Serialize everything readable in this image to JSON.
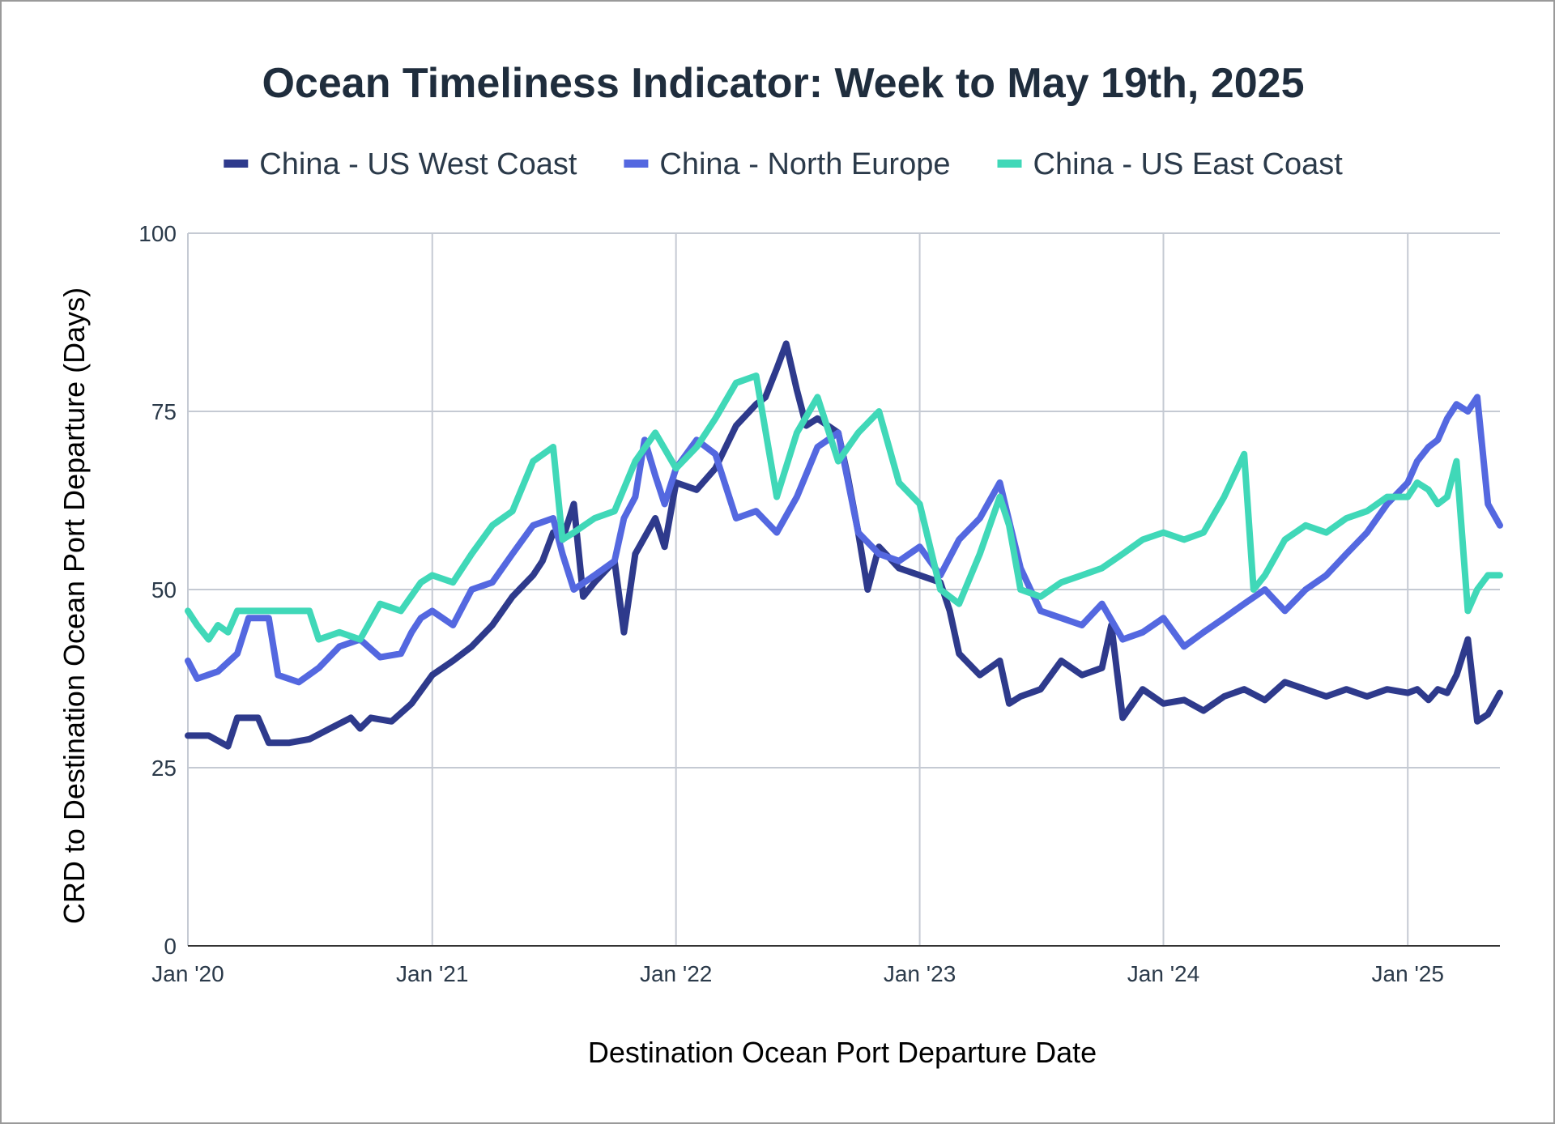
{
  "chart_data": {
    "type": "line",
    "title": "Ocean Timeliness Indicator: Week to May 19th, 2025",
    "xlabel": "Destination Ocean Port Departure Date",
    "ylabel": "CRD to Destination Ocean Port Departure (Days)",
    "ylim": [
      0,
      100
    ],
    "yticks": [
      0,
      25,
      50,
      75,
      100
    ],
    "xlim": [
      "2020-01-01",
      "2025-05-19"
    ],
    "xticks": [
      {
        "date": "2020-01-01",
        "label": "Jan '20"
      },
      {
        "date": "2021-01-01",
        "label": "Jan '21"
      },
      {
        "date": "2022-01-01",
        "label": "Jan '22"
      },
      {
        "date": "2023-01-01",
        "label": "Jan '23"
      },
      {
        "date": "2024-01-01",
        "label": "Jan '24"
      },
      {
        "date": "2025-01-01",
        "label": "Jan '25"
      }
    ],
    "grid": true,
    "legend_position": "top",
    "series": [
      {
        "name": "China - US West Coast",
        "color": "#2e3a8c",
        "points": [
          [
            "2020-01-01",
            29.5
          ],
          [
            "2020-02-01",
            29.5
          ],
          [
            "2020-03-01",
            28
          ],
          [
            "2020-03-15",
            32
          ],
          [
            "2020-04-15",
            32
          ],
          [
            "2020-05-01",
            28.5
          ],
          [
            "2020-06-01",
            28.5
          ],
          [
            "2020-07-01",
            29
          ],
          [
            "2020-08-01",
            30.5
          ],
          [
            "2020-09-01",
            32
          ],
          [
            "2020-09-15",
            30.5
          ],
          [
            "2020-10-01",
            32
          ],
          [
            "2020-11-01",
            31.5
          ],
          [
            "2020-12-01",
            34
          ],
          [
            "2021-01-01",
            38
          ],
          [
            "2021-02-01",
            40
          ],
          [
            "2021-03-01",
            42
          ],
          [
            "2021-04-01",
            45
          ],
          [
            "2021-05-01",
            49
          ],
          [
            "2021-06-01",
            52
          ],
          [
            "2021-06-15",
            54
          ],
          [
            "2021-07-01",
            58
          ],
          [
            "2021-07-15",
            57
          ],
          [
            "2021-08-01",
            62
          ],
          [
            "2021-08-15",
            49
          ],
          [
            "2021-09-01",
            51
          ],
          [
            "2021-10-01",
            54
          ],
          [
            "2021-10-15",
            44
          ],
          [
            "2021-11-01",
            55
          ],
          [
            "2021-12-01",
            60
          ],
          [
            "2021-12-15",
            56
          ],
          [
            "2022-01-01",
            65
          ],
          [
            "2022-02-01",
            64
          ],
          [
            "2022-03-01",
            67
          ],
          [
            "2022-04-01",
            73
          ],
          [
            "2022-05-01",
            76
          ],
          [
            "2022-05-15",
            77
          ],
          [
            "2022-06-01",
            81
          ],
          [
            "2022-06-15",
            84.5
          ],
          [
            "2022-07-01",
            78
          ],
          [
            "2022-07-15",
            73
          ],
          [
            "2022-08-01",
            74
          ],
          [
            "2022-09-01",
            72
          ],
          [
            "2022-09-15",
            66
          ],
          [
            "2022-10-01",
            58
          ],
          [
            "2022-10-15",
            50
          ],
          [
            "2022-11-01",
            56
          ],
          [
            "2022-12-01",
            53
          ],
          [
            "2023-01-01",
            52
          ],
          [
            "2023-02-01",
            51
          ],
          [
            "2023-02-15",
            47
          ],
          [
            "2023-03-01",
            41
          ],
          [
            "2023-04-01",
            38
          ],
          [
            "2023-05-01",
            40
          ],
          [
            "2023-05-15",
            34
          ],
          [
            "2023-06-01",
            35
          ],
          [
            "2023-07-01",
            36
          ],
          [
            "2023-08-01",
            40
          ],
          [
            "2023-09-01",
            38
          ],
          [
            "2023-10-01",
            39
          ],
          [
            "2023-10-15",
            45
          ],
          [
            "2023-11-01",
            32
          ],
          [
            "2023-12-01",
            36
          ],
          [
            "2024-01-01",
            34
          ],
          [
            "2024-02-01",
            34.5
          ],
          [
            "2024-03-01",
            33
          ],
          [
            "2024-04-01",
            35
          ],
          [
            "2024-05-01",
            36
          ],
          [
            "2024-06-01",
            34.5
          ],
          [
            "2024-07-01",
            37
          ],
          [
            "2024-08-01",
            36
          ],
          [
            "2024-09-01",
            35
          ],
          [
            "2024-10-01",
            36
          ],
          [
            "2024-11-01",
            35
          ],
          [
            "2024-12-01",
            36
          ],
          [
            "2025-01-01",
            35.5
          ],
          [
            "2025-01-15",
            36
          ],
          [
            "2025-02-01",
            34.5
          ],
          [
            "2025-02-15",
            36
          ],
          [
            "2025-03-01",
            35.5
          ],
          [
            "2025-03-15",
            38
          ],
          [
            "2025-04-01",
            43
          ],
          [
            "2025-04-15",
            31.5
          ],
          [
            "2025-05-01",
            32.5
          ],
          [
            "2025-05-19",
            35.5
          ]
        ]
      },
      {
        "name": "China - North Europe",
        "color": "#5468e0",
        "points": [
          [
            "2020-01-01",
            40
          ],
          [
            "2020-01-15",
            37.5
          ],
          [
            "2020-02-15",
            38.5
          ],
          [
            "2020-03-15",
            41
          ],
          [
            "2020-04-01",
            46
          ],
          [
            "2020-05-01",
            46
          ],
          [
            "2020-05-15",
            38
          ],
          [
            "2020-06-15",
            37
          ],
          [
            "2020-07-15",
            39
          ],
          [
            "2020-08-15",
            42
          ],
          [
            "2020-09-15",
            43
          ],
          [
            "2020-10-15",
            40.5
          ],
          [
            "2020-11-15",
            41
          ],
          [
            "2020-12-01",
            44
          ],
          [
            "2020-12-15",
            46
          ],
          [
            "2021-01-01",
            47
          ],
          [
            "2021-02-01",
            45
          ],
          [
            "2021-03-01",
            50
          ],
          [
            "2021-04-01",
            51
          ],
          [
            "2021-05-01",
            55
          ],
          [
            "2021-06-01",
            59
          ],
          [
            "2021-07-01",
            60
          ],
          [
            "2021-07-15",
            55
          ],
          [
            "2021-08-01",
            50
          ],
          [
            "2021-09-01",
            52
          ],
          [
            "2021-10-01",
            54
          ],
          [
            "2021-10-15",
            60
          ],
          [
            "2021-11-01",
            63
          ],
          [
            "2021-11-15",
            71
          ],
          [
            "2021-12-01",
            66
          ],
          [
            "2021-12-15",
            62
          ],
          [
            "2022-01-01",
            67
          ],
          [
            "2022-02-01",
            71
          ],
          [
            "2022-03-01",
            69
          ],
          [
            "2022-04-01",
            60
          ],
          [
            "2022-05-01",
            61
          ],
          [
            "2022-06-01",
            58
          ],
          [
            "2022-07-01",
            63
          ],
          [
            "2022-08-01",
            70
          ],
          [
            "2022-09-01",
            72
          ],
          [
            "2022-10-01",
            58
          ],
          [
            "2022-11-01",
            55
          ],
          [
            "2022-12-01",
            54
          ],
          [
            "2023-01-01",
            56
          ],
          [
            "2023-02-01",
            52
          ],
          [
            "2023-03-01",
            57
          ],
          [
            "2023-04-01",
            60
          ],
          [
            "2023-05-01",
            65
          ],
          [
            "2023-06-01",
            53
          ],
          [
            "2023-07-01",
            47
          ],
          [
            "2023-08-01",
            46
          ],
          [
            "2023-09-01",
            45
          ],
          [
            "2023-10-01",
            48
          ],
          [
            "2023-11-01",
            43
          ],
          [
            "2023-12-01",
            44
          ],
          [
            "2024-01-01",
            46
          ],
          [
            "2024-02-01",
            42
          ],
          [
            "2024-03-01",
            44
          ],
          [
            "2024-04-01",
            46
          ],
          [
            "2024-05-01",
            48
          ],
          [
            "2024-06-01",
            50
          ],
          [
            "2024-07-01",
            47
          ],
          [
            "2024-08-01",
            50
          ],
          [
            "2024-09-01",
            52
          ],
          [
            "2024-10-01",
            55
          ],
          [
            "2024-11-01",
            58
          ],
          [
            "2024-12-01",
            62
          ],
          [
            "2025-01-01",
            65
          ],
          [
            "2025-01-15",
            68
          ],
          [
            "2025-02-01",
            70
          ],
          [
            "2025-02-15",
            71
          ],
          [
            "2025-03-01",
            74
          ],
          [
            "2025-03-15",
            76
          ],
          [
            "2025-04-01",
            75
          ],
          [
            "2025-04-15",
            77
          ],
          [
            "2025-05-01",
            62
          ],
          [
            "2025-05-19",
            59
          ]
        ]
      },
      {
        "name": "China - US East Coast",
        "color": "#40d8b8",
        "points": [
          [
            "2020-01-01",
            47
          ],
          [
            "2020-01-15",
            45
          ],
          [
            "2020-02-01",
            43
          ],
          [
            "2020-02-15",
            45
          ],
          [
            "2020-03-01",
            44
          ],
          [
            "2020-03-15",
            47
          ],
          [
            "2020-04-01",
            47
          ],
          [
            "2020-05-01",
            47
          ],
          [
            "2020-06-01",
            47
          ],
          [
            "2020-07-01",
            47
          ],
          [
            "2020-07-15",
            43
          ],
          [
            "2020-08-15",
            44
          ],
          [
            "2020-09-15",
            43
          ],
          [
            "2020-10-15",
            48
          ],
          [
            "2020-11-15",
            47
          ],
          [
            "2020-12-15",
            51
          ],
          [
            "2021-01-01",
            52
          ],
          [
            "2021-02-01",
            51
          ],
          [
            "2021-03-01",
            55
          ],
          [
            "2021-04-01",
            59
          ],
          [
            "2021-05-01",
            61
          ],
          [
            "2021-06-01",
            68
          ],
          [
            "2021-07-01",
            70
          ],
          [
            "2021-07-15",
            57
          ],
          [
            "2021-08-01",
            58
          ],
          [
            "2021-09-01",
            60
          ],
          [
            "2021-10-01",
            61
          ],
          [
            "2021-11-01",
            68
          ],
          [
            "2021-12-01",
            72
          ],
          [
            "2022-01-01",
            67
          ],
          [
            "2022-02-01",
            70
          ],
          [
            "2022-03-01",
            74
          ],
          [
            "2022-04-01",
            79
          ],
          [
            "2022-05-01",
            80
          ],
          [
            "2022-06-01",
            63
          ],
          [
            "2022-07-01",
            72
          ],
          [
            "2022-08-01",
            77
          ],
          [
            "2022-09-01",
            68
          ],
          [
            "2022-10-01",
            72
          ],
          [
            "2022-11-01",
            75
          ],
          [
            "2022-12-01",
            65
          ],
          [
            "2023-01-01",
            62
          ],
          [
            "2023-02-01",
            50
          ],
          [
            "2023-03-01",
            48
          ],
          [
            "2023-04-01",
            55
          ],
          [
            "2023-05-01",
            63
          ],
          [
            "2023-05-15",
            59
          ],
          [
            "2023-06-01",
            50
          ],
          [
            "2023-07-01",
            49
          ],
          [
            "2023-08-01",
            51
          ],
          [
            "2023-09-01",
            52
          ],
          [
            "2023-10-01",
            53
          ],
          [
            "2023-11-01",
            55
          ],
          [
            "2023-12-01",
            57
          ],
          [
            "2024-01-01",
            58
          ],
          [
            "2024-02-01",
            57
          ],
          [
            "2024-03-01",
            58
          ],
          [
            "2024-04-01",
            63
          ],
          [
            "2024-05-01",
            69
          ],
          [
            "2024-05-15",
            50
          ],
          [
            "2024-06-01",
            52
          ],
          [
            "2024-07-01",
            57
          ],
          [
            "2024-08-01",
            59
          ],
          [
            "2024-09-01",
            58
          ],
          [
            "2024-10-01",
            60
          ],
          [
            "2024-11-01",
            61
          ],
          [
            "2024-12-01",
            63
          ],
          [
            "2025-01-01",
            63
          ],
          [
            "2025-01-15",
            65
          ],
          [
            "2025-02-01",
            64
          ],
          [
            "2025-02-15",
            62
          ],
          [
            "2025-03-01",
            63
          ],
          [
            "2025-03-15",
            68
          ],
          [
            "2025-04-01",
            47
          ],
          [
            "2025-04-15",
            50
          ],
          [
            "2025-05-01",
            52
          ],
          [
            "2025-05-19",
            52
          ]
        ]
      }
    ]
  }
}
